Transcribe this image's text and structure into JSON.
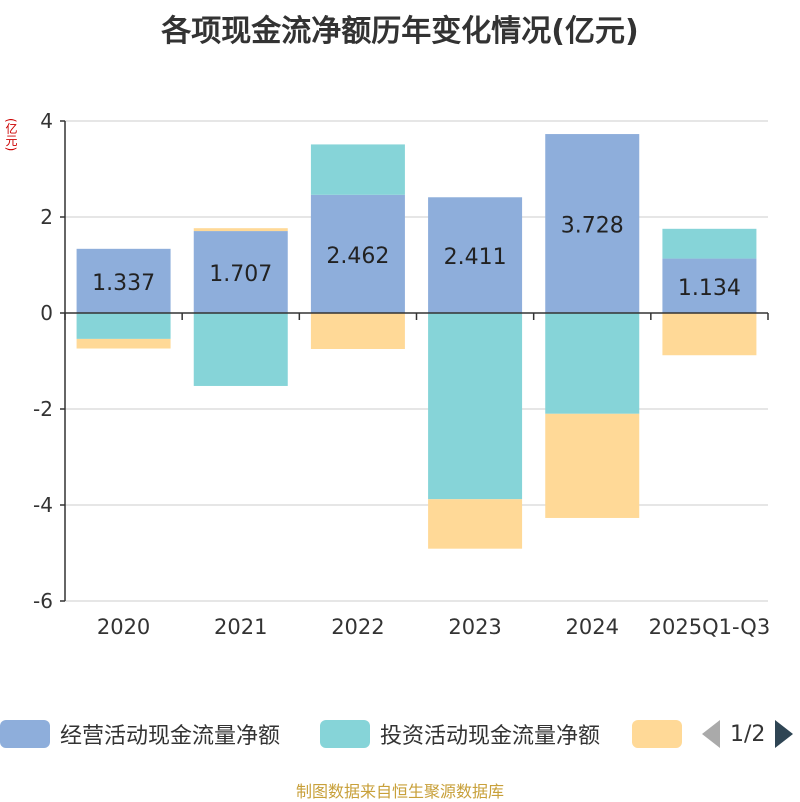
{
  "title": "各项现金流净额历年变化情况(亿元)",
  "unit_label": "(亿元)",
  "source": "制图数据来自恒生聚源数据库",
  "legend": {
    "items": [
      {
        "label": "经营活动现金流量净额",
        "color": "#8eaedb"
      },
      {
        "label": "投资活动现金流量净额",
        "color": "#86d4d8"
      },
      {
        "label": "",
        "color": "#ffd997"
      }
    ],
    "page_text": "1/2"
  },
  "chart_data": {
    "type": "bar",
    "stacked": true,
    "title": "各项现金流净额历年变化情况(亿元)",
    "ylabel": "(亿元)",
    "xlabel": "",
    "categories": [
      "2020",
      "2021",
      "2022",
      "2023",
      "2024",
      "2025Q1-Q3"
    ],
    "ylim": [
      -6,
      4
    ],
    "yticks": [
      4,
      2,
      0,
      -2,
      -4,
      -6
    ],
    "ytick_labels": [
      "4",
      "2",
      "0",
      "-2",
      "-4",
      "-6"
    ],
    "series": [
      {
        "name": "经营活动现金流量净额",
        "color": "#8eaedb",
        "values": [
          1.337,
          1.707,
          2.462,
          2.411,
          3.728,
          1.134
        ],
        "labels": [
          "1.337",
          "1.707",
          "2.462",
          "2.411",
          "3.728",
          "1.134"
        ]
      },
      {
        "name": "投资活动现金流量净额",
        "color": "#86d4d8",
        "values": [
          -0.54,
          -1.52,
          1.05,
          -3.88,
          -2.1,
          0.62
        ]
      },
      {
        "name": "",
        "color": "#ffd997",
        "values": [
          -0.2,
          0.06,
          -0.75,
          -1.03,
          -2.17,
          -0.88
        ]
      }
    ]
  }
}
